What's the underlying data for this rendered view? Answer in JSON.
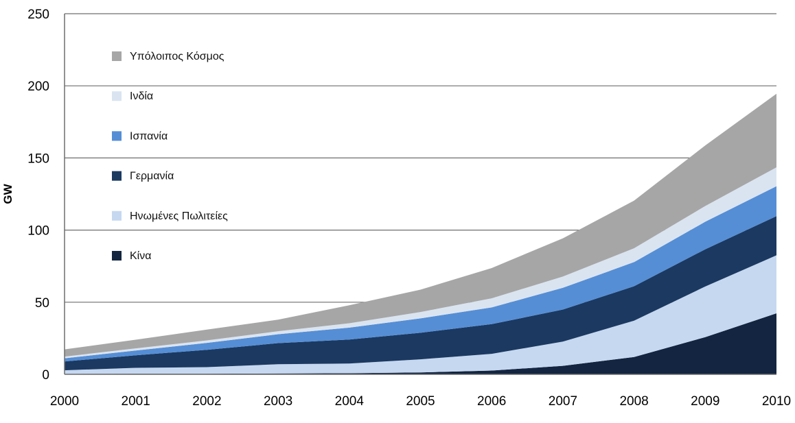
{
  "chart_data": {
    "type": "area",
    "stacked": true,
    "title": "",
    "xlabel": "",
    "ylabel": "GW",
    "x": [
      "2000",
      "2001",
      "2002",
      "2003",
      "2004",
      "2005",
      "2006",
      "2007",
      "2008",
      "2009",
      "2010"
    ],
    "ylim": [
      0,
      250
    ],
    "yticks": [
      "0",
      "50",
      "100",
      "150",
      "200",
      "250"
    ],
    "grid": true,
    "legend_position": "top-left",
    "series": [
      {
        "name": "Κίνα",
        "color": "#132540",
        "values": [
          0.3,
          0.4,
          0.4,
          0.6,
          0.8,
          1.3,
          2.6,
          5.9,
          12.0,
          25.8,
          42.3
        ]
      },
      {
        "name": "Ηνωμένες Πωλιτείες",
        "color": "#c6d8f0",
        "values": [
          2.5,
          4.1,
          4.6,
          6.4,
          6.7,
          9.1,
          11.6,
          16.8,
          25.2,
          35.1,
          40.2
        ]
      },
      {
        "name": "Γερμανία",
        "color": "#1b3961",
        "values": [
          6.1,
          8.7,
          12.0,
          14.6,
          16.6,
          18.4,
          20.6,
          22.2,
          23.9,
          25.8,
          27.2
        ]
      },
      {
        "name": "Ισπανία",
        "color": "#558ed5",
        "values": [
          2.2,
          3.3,
          4.8,
          6.2,
          8.3,
          10.0,
          11.6,
          15.1,
          16.7,
          19.1,
          20.7
        ]
      },
      {
        "name": "Ινδία",
        "color": "#dae4f1",
        "values": [
          1.2,
          1.5,
          1.7,
          2.1,
          3.0,
          4.4,
          6.3,
          7.8,
          9.6,
          10.9,
          13.1
        ]
      },
      {
        "name": "Υπόλοιπος Κόσμος",
        "color": "#a6a6a6",
        "values": [
          5.0,
          6.0,
          7.5,
          8.0,
          12.5,
          15.5,
          21.0,
          26.5,
          33.0,
          42.0,
          51.0
        ]
      }
    ]
  }
}
